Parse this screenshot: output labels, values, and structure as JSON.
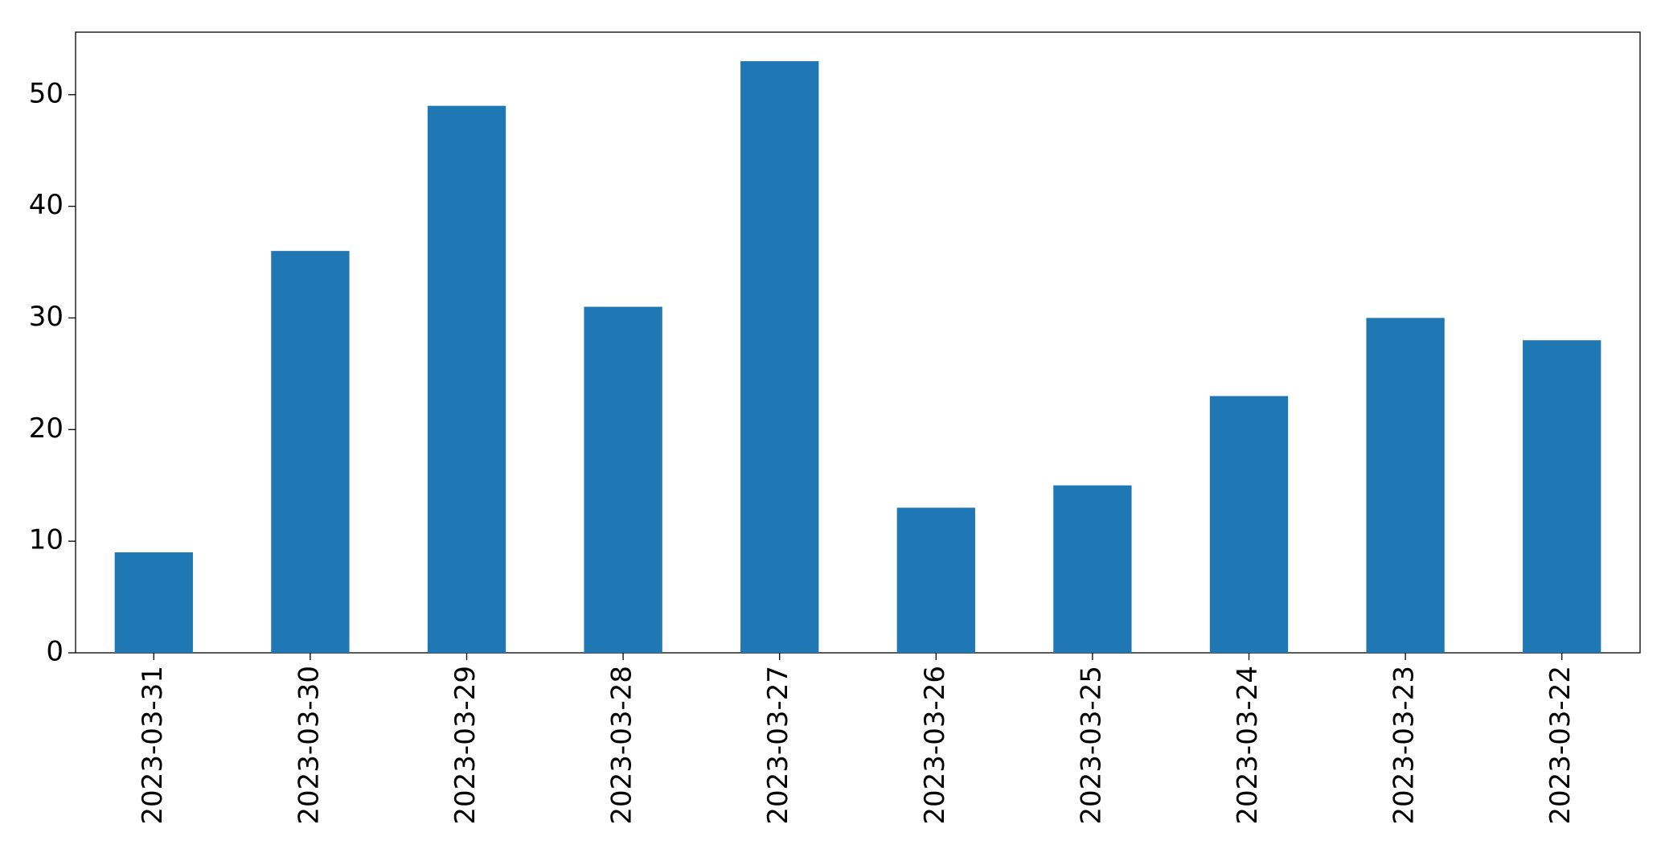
{
  "chart_data": {
    "type": "bar",
    "categories": [
      "2023-03-31",
      "2023-03-30",
      "2023-03-29",
      "2023-03-28",
      "2023-03-27",
      "2023-03-26",
      "2023-03-25",
      "2023-03-24",
      "2023-03-23",
      "2023-03-22"
    ],
    "values": [
      9,
      36,
      49,
      31,
      53,
      13,
      15,
      23,
      30,
      28
    ],
    "color": "#1f77b4",
    "ylim": [
      0,
      55.6
    ],
    "yticks": [
      0,
      10,
      20,
      30,
      40,
      50
    ],
    "grid": false
  }
}
